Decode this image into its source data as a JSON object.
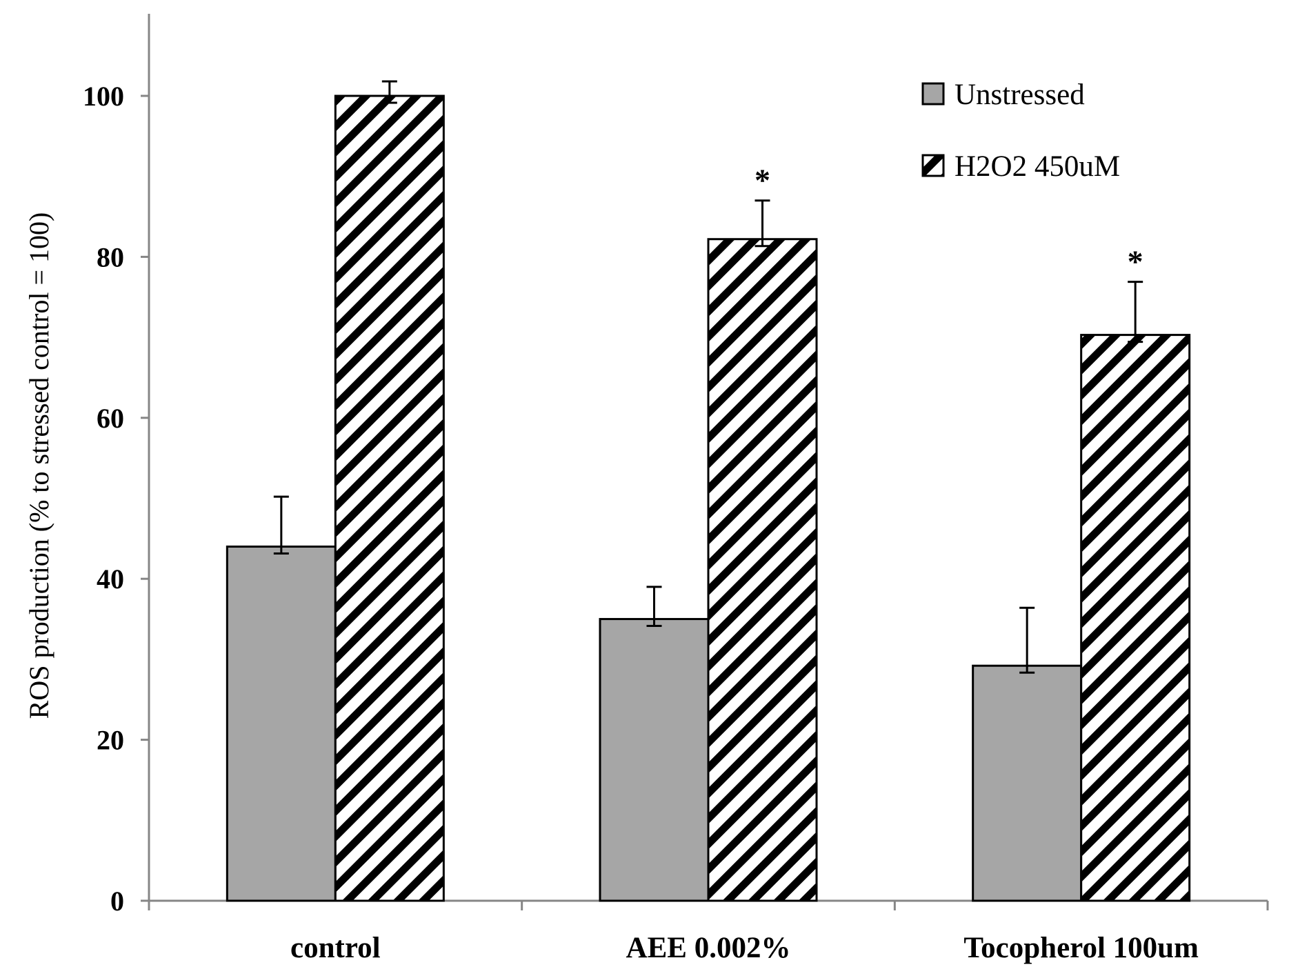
{
  "chart_data": {
    "type": "bar",
    "title": "",
    "xlabel": "",
    "ylabel": "ROS production  (% to stressed control = 100)",
    "ylim": [
      0,
      110
    ],
    "yticks": [
      "0",
      "20",
      "40",
      "60",
      "80",
      "100"
    ],
    "categories": [
      "control",
      "AEE 0.002%",
      "Tocopherol 100um"
    ],
    "series": [
      {
        "name": "Unstressed",
        "pattern": "solid",
        "color": "#a6a6a6",
        "values": [
          44,
          35,
          29.2
        ],
        "errors": [
          6.2,
          4.0,
          7.2
        ],
        "annotations": [
          "",
          "",
          ""
        ]
      },
      {
        "name": "H2O2 450uM",
        "pattern": "diagonal-hatch",
        "color": "#000000",
        "values": [
          100,
          82.2,
          70.3
        ],
        "errors": [
          1.8,
          4.8,
          6.6
        ],
        "annotations": [
          "",
          "*",
          "*"
        ]
      }
    ],
    "legend": {
      "position": "top-right",
      "entries": [
        "Unstressed",
        "H2O2 450uM"
      ]
    },
    "grid": false
  }
}
